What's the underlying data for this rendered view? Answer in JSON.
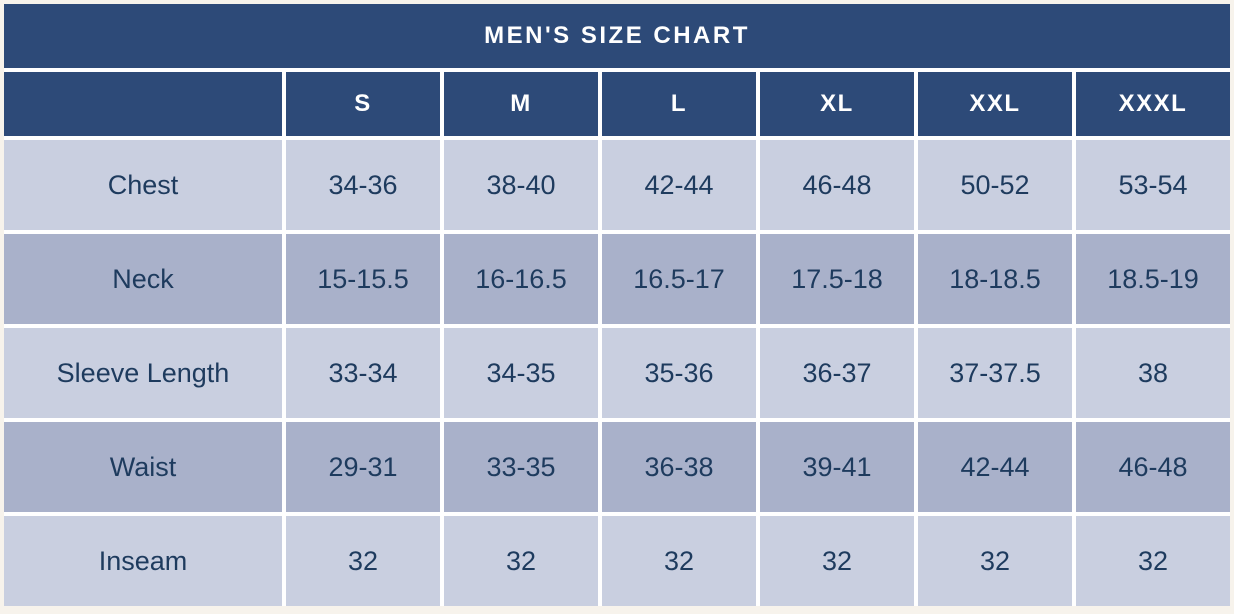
{
  "title": "MEN'S SIZE CHART",
  "colors": {
    "header_blue": "#2d4a78",
    "row_light": "#c9cfe0",
    "row_dark": "#a9b1ca",
    "text_navy": "#1e3b5e",
    "gap_white": "#ffffff",
    "page_background": "#f7f3ec"
  },
  "chart_data": {
    "type": "table",
    "title": "MEN'S SIZE CHART",
    "columns": [
      "",
      "S",
      "M",
      "L",
      "XL",
      "XXL",
      "XXXL"
    ],
    "rows": [
      {
        "label": "Chest",
        "values": [
          "34-36",
          "38-40",
          "42-44",
          "46-48",
          "50-52",
          "53-54"
        ]
      },
      {
        "label": "Neck",
        "values": [
          "15-15.5",
          "16-16.5",
          "16.5-17",
          "17.5-18",
          "18-18.5",
          "18.5-19"
        ]
      },
      {
        "label": "Sleeve Length",
        "values": [
          "33-34",
          "34-35",
          "35-36",
          "36-37",
          "37-37.5",
          "38"
        ]
      },
      {
        "label": "Waist",
        "values": [
          "29-31",
          "33-35",
          "36-38",
          "39-41",
          "42-44",
          "46-48"
        ]
      },
      {
        "label": "Inseam",
        "values": [
          "32",
          "32",
          "32",
          "32",
          "32",
          "32"
        ]
      }
    ]
  },
  "headers": {
    "s": "S",
    "m": "M",
    "l": "L",
    "xl": "XL",
    "xxl": "XXL",
    "xxxl": "XXXL"
  }
}
